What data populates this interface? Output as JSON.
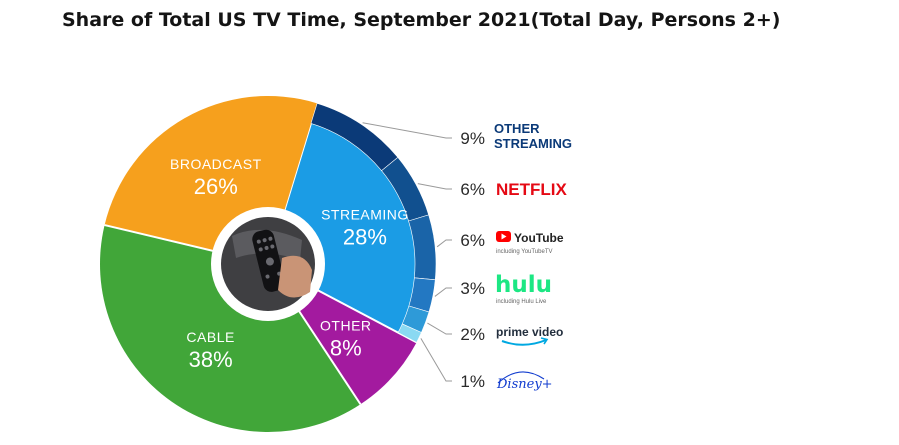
{
  "title": "Share of Total US TV Time, September 2021(Total Day, Persons 2+)",
  "chart_data": {
    "type": "pie",
    "title": "Share of Total US TV Time, September 2021(Total Day, Persons 2+)",
    "slices": [
      {
        "label": "STREAMING",
        "value": 28,
        "display": "28%",
        "color": "#1b9ce5"
      },
      {
        "label": "OTHER",
        "value": 8,
        "display": "8%",
        "color": "#a31a9f"
      },
      {
        "label": "CABLE",
        "value": 38,
        "display": "38%",
        "color": "#41a639"
      },
      {
        "label": "BROADCAST",
        "value": 26,
        "display": "26%",
        "color": "#f6a01d"
      }
    ],
    "streaming_breakdown": [
      {
        "name": "OTHER STREAMING",
        "lines": [
          "OTHER",
          "STREAMING"
        ],
        "value": 9,
        "display": "9%",
        "color": "#0b3a78"
      },
      {
        "name": "NETFLIX",
        "value": 6,
        "display": "6%",
        "color": "#11508f"
      },
      {
        "name": "YouTube",
        "note": "including YouTubeTV",
        "value": 6,
        "display": "6%",
        "color": "#1a64a8"
      },
      {
        "name": "hulu",
        "note": "including Hulu Live",
        "value": 3,
        "display": "3%",
        "color": "#2378c2"
      },
      {
        "name": "prime video",
        "value": 2,
        "display": "2%",
        "color": "#2e9ad8"
      },
      {
        "name": "Disney+",
        "value": 1,
        "display": "1%",
        "color": "#8ad9f2"
      }
    ],
    "brand_colors": {
      "netflix": "#e50914",
      "youtube": "#ff0000",
      "hulu": "#1ce783",
      "prime": "#00a8e1",
      "disney": "#113ccf",
      "other_streaming": "#0b3a78"
    }
  }
}
